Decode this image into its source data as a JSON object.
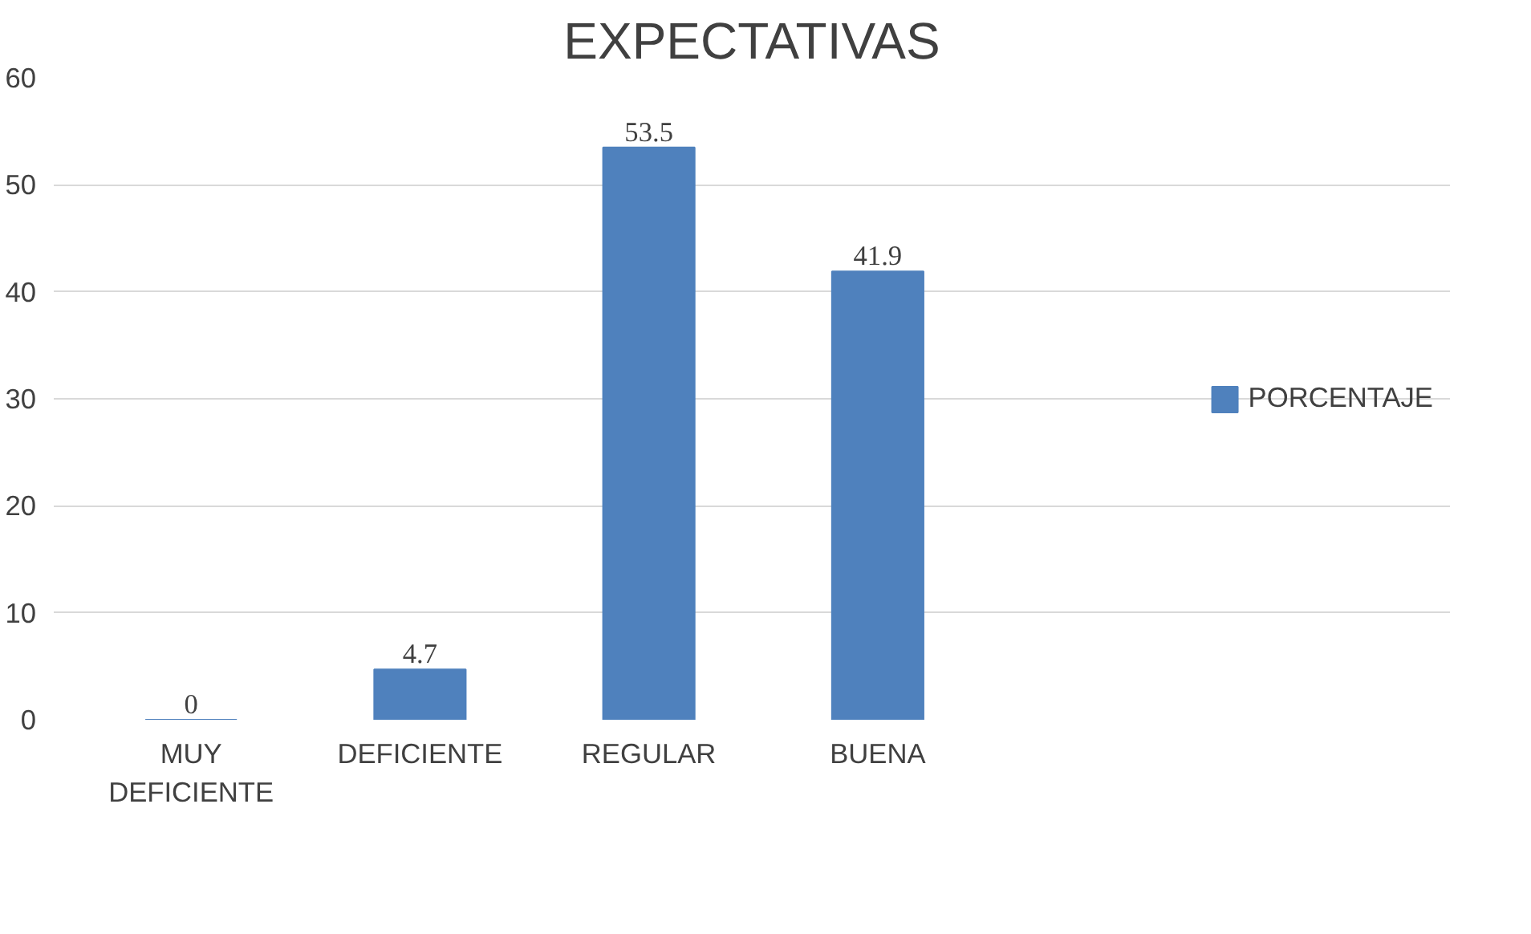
{
  "chart_data": {
    "type": "bar",
    "title": "EXPECTATIVAS",
    "categories": [
      "MUY\nDEFICIENTE",
      "DEFICIENTE",
      "REGULAR",
      "BUENA"
    ],
    "series": [
      {
        "name": "PORCENTAJE",
        "color": "#4f81bd",
        "values": [
          0,
          4.7,
          53.5,
          41.9
        ]
      }
    ],
    "ylim": [
      0,
      60
    ],
    "yticks": [
      0,
      10,
      20,
      30,
      40,
      50,
      60
    ],
    "grid": "y",
    "legend": "right",
    "data_labels": true
  }
}
